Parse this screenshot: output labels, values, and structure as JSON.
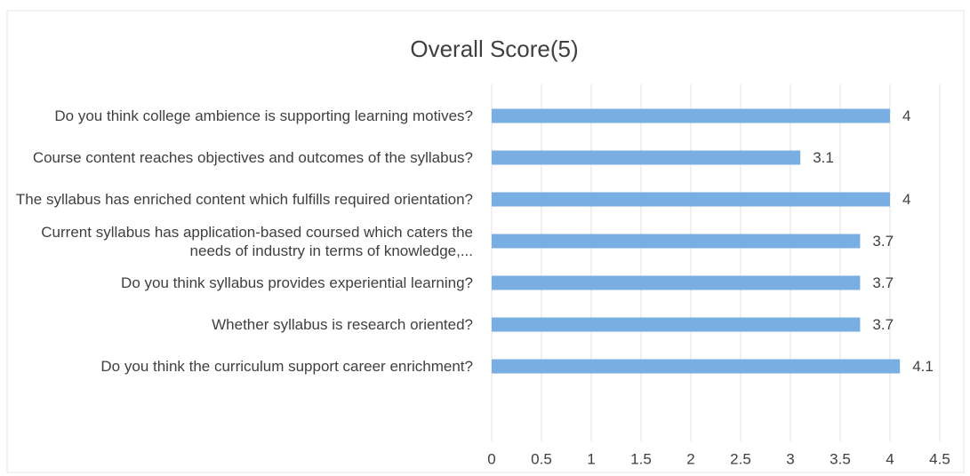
{
  "chart_data": {
    "type": "bar",
    "orientation": "horizontal",
    "title": "Overall Score(5)",
    "categories": [
      "Do you think college ambience is supporting learning motives?",
      "Course content reaches objectives and outcomes of the syllabus?",
      "The syllabus has enriched content which fulfills required orientation?",
      "Current syllabus has application-based coursed which caters the needs of industry in terms of knowledge,...",
      "Do you think syllabus provides experiential learning?",
      "Whether syllabus is research oriented?",
      "Do you think the curriculum support career enrichment?"
    ],
    "values": [
      4,
      3.1,
      4,
      3.7,
      3.7,
      3.7,
      4.1
    ],
    "color": "#78aee2",
    "xlim": [
      0,
      4.5
    ],
    "xticks": [
      0,
      0.5,
      1,
      1.5,
      2,
      2.5,
      3,
      3.5,
      4,
      4.5
    ],
    "grid": true
  }
}
